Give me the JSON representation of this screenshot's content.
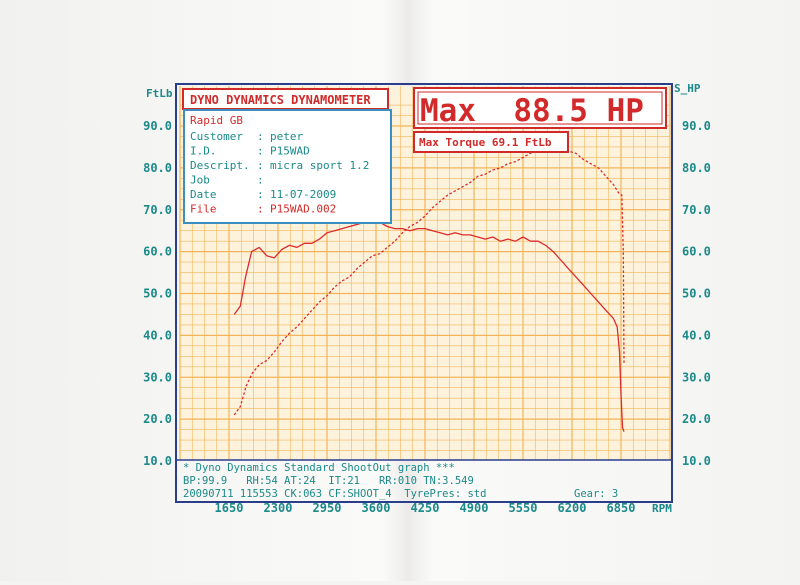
{
  "header": {
    "left_unit": "FtLb",
    "right_unit": "S_HP",
    "title": "DYNO DYNAMICS DYNAMOMETER",
    "max_power": "Max  88.5 HP",
    "max_torque": "Max Torque 69.1 FtLb"
  },
  "info": {
    "company": "Rapid GB",
    "rows": [
      {
        "label": "Customer",
        "sep": ":",
        "value": "peter"
      },
      {
        "label": "I.D.",
        "sep": ":",
        "value": "P15WAD"
      },
      {
        "label": "Descript.",
        "sep": ":",
        "value": "micra sport 1.2"
      },
      {
        "label": "Job",
        "sep": ":",
        "value": ""
      },
      {
        "label": "Date",
        "sep": ":",
        "value": "11-07-2009"
      },
      {
        "label": "File",
        "sep": ":",
        "value": "P15WAD.002"
      }
    ]
  },
  "footer": {
    "line1": "* Dyno Dynamics Standard ShootOut graph ***",
    "line2": "BP:99.9   RH:54 AT:24  IT:21   RR:010 TN:3.549",
    "line3": "20090711 115553 CK:063 CF:SHOOT_4  TyrePres: std",
    "gear": "Gear: 3"
  },
  "colors": {
    "frame": "#2a3e8c",
    "grid": "#f2b45a",
    "grid_bg": "#fdf3dc",
    "curve": "#dd2b2b",
    "label": "#1b8a8a",
    "title": "#d22a2a"
  },
  "chart_data": {
    "type": "line",
    "xlabel": "RPM",
    "x_ticks": [
      1650,
      2300,
      2950,
      3600,
      4250,
      4900,
      5550,
      6200,
      6850
    ],
    "xlim": [
      1000,
      7500
    ],
    "left_axis": {
      "unit": "FtLb",
      "ticks": [
        10.0,
        20.0,
        30.0,
        40.0,
        50.0,
        60.0,
        70.0,
        80.0,
        90.0
      ],
      "ylim": [
        10,
        90
      ]
    },
    "right_axis": {
      "unit": "S_HP",
      "ticks": [
        10.0,
        20.0,
        30.0,
        40.0,
        50.0,
        60.0,
        70.0,
        80.0,
        90.0
      ],
      "ylim": [
        10,
        90
      ]
    },
    "series": [
      {
        "style": "solid",
        "x": [
          1720,
          1800,
          1870,
          1950,
          2050,
          2150,
          2250,
          2350,
          2450,
          2550,
          2650,
          2750,
          2850,
          2950,
          3050,
          3150,
          3250,
          3350,
          3450,
          3550,
          3650,
          3750,
          3850,
          3950,
          4050,
          4150,
          4250,
          4350,
          4450,
          4550,
          4650,
          4750,
          4850,
          4950,
          5050,
          5150,
          5250,
          5350,
          5450,
          5550,
          5650,
          5750,
          5850,
          5950,
          6050,
          6150,
          6250,
          6350,
          6450,
          6550,
          6650,
          6750,
          6800,
          6830,
          6850,
          6870,
          6890
        ],
        "y": [
          45.0,
          47.0,
          54.0,
          60.0,
          61.0,
          59.0,
          58.5,
          60.5,
          61.5,
          61.0,
          62.0,
          62.0,
          63.0,
          64.5,
          65.0,
          65.5,
          66.0,
          66.5,
          67.0,
          67.0,
          67.0,
          66.0,
          65.5,
          65.5,
          65.0,
          65.5,
          65.5,
          65.0,
          64.5,
          64.0,
          64.5,
          64.0,
          64.0,
          63.5,
          63.0,
          63.5,
          62.5,
          63.0,
          62.5,
          63.5,
          62.5,
          62.5,
          61.5,
          60.0,
          58.0,
          56.0,
          54.0,
          52.0,
          50.0,
          48.0,
          46.0,
          44.0,
          42.0,
          36.0,
          26.0,
          18.0,
          17.0
        ]
      },
      {
        "style": "dashed",
        "x": [
          1720,
          1800,
          1880,
          1960,
          2050,
          2150,
          2250,
          2350,
          2450,
          2550,
          2650,
          2750,
          2850,
          2950,
          3050,
          3150,
          3250,
          3350,
          3450,
          3550,
          3650,
          3750,
          3850,
          3950,
          4050,
          4150,
          4250,
          4350,
          4450,
          4550,
          4650,
          4750,
          4850,
          4950,
          5050,
          5150,
          5250,
          5350,
          5450,
          5550,
          5650,
          5750,
          5850,
          5950,
          6050,
          6150,
          6250,
          6350,
          6450,
          6550,
          6650,
          6750,
          6820,
          6860,
          6880,
          6890
        ],
        "y": [
          21.0,
          23.0,
          28.0,
          31.0,
          33.0,
          34.0,
          36.0,
          38.5,
          40.5,
          42.0,
          44.0,
          46.0,
          48.0,
          49.5,
          51.5,
          53.0,
          54.0,
          56.0,
          57.5,
          59.0,
          59.5,
          61.0,
          62.5,
          64.5,
          66.0,
          67.0,
          68.5,
          70.5,
          72.0,
          73.5,
          74.5,
          75.5,
          76.5,
          78.0,
          78.5,
          79.5,
          80.0,
          81.0,
          81.5,
          82.5,
          83.5,
          84.5,
          85.5,
          85.5,
          85.0,
          84.0,
          83.5,
          82.0,
          81.0,
          80.0,
          78.0,
          76.0,
          74.0,
          73.5,
          60.0,
          33.0
        ]
      }
    ]
  }
}
